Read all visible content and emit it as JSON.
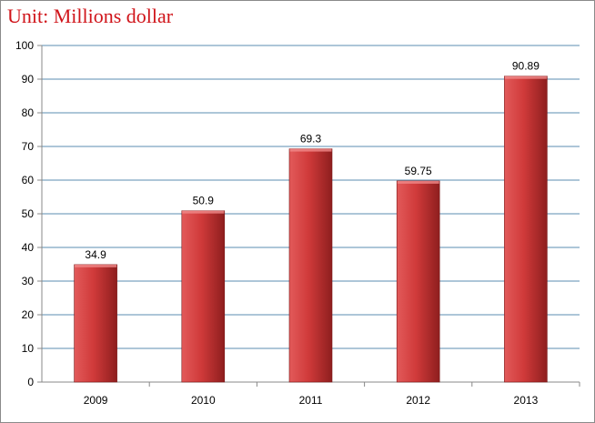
{
  "chart_data": {
    "type": "bar",
    "title": "Unit: Millions dollar",
    "categories": [
      "2009",
      "2010",
      "2011",
      "2012",
      "2013"
    ],
    "values": [
      34.9,
      50.9,
      69.3,
      59.75,
      90.89
    ],
    "data_labels": [
      "34.9",
      "50.9",
      "69.3",
      "59.75",
      "90.89"
    ],
    "y_ticks": [
      "0",
      "10",
      "20",
      "30",
      "40",
      "50",
      "60",
      "70",
      "80",
      "90",
      "100"
    ],
    "ylim": [
      0,
      100
    ],
    "xlabel": "",
    "ylabel": "",
    "grid": true,
    "legend": "none",
    "colors": {
      "bar_light": "#e25a5a",
      "bar_mid": "#d03a3a",
      "bar_dark": "#8e1e1e",
      "grid": "#5b8db0",
      "title": "#d0141a"
    }
  }
}
